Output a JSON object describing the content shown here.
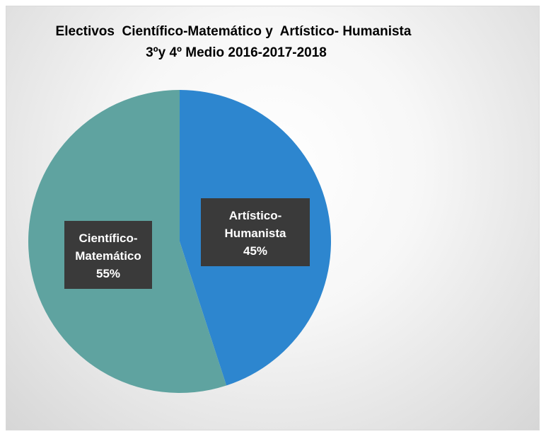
{
  "chart_data": {
    "type": "pie",
    "title": [
      "Electivos  Científico-Matemático y  Artístico- Humanista",
      "3ºy 4º Medio 2016-2017-2018"
    ],
    "slices": [
      {
        "label": "Artístico-Humanista",
        "label_lines": [
          "Artístico-",
          "Humanista"
        ],
        "value": 45,
        "display": "45%",
        "color": "#2d86cf"
      },
      {
        "label": "Científico-Matemático",
        "label_lines": [
          "Científico-",
          "Matemático"
        ],
        "value": 55,
        "display": "55%",
        "color": "#5fa3a0"
      }
    ],
    "start_angle_deg": 0,
    "direction": "clockwise",
    "legend": "none",
    "label_style": {
      "box": "#3a3a3a",
      "text": "#ffffff"
    }
  }
}
